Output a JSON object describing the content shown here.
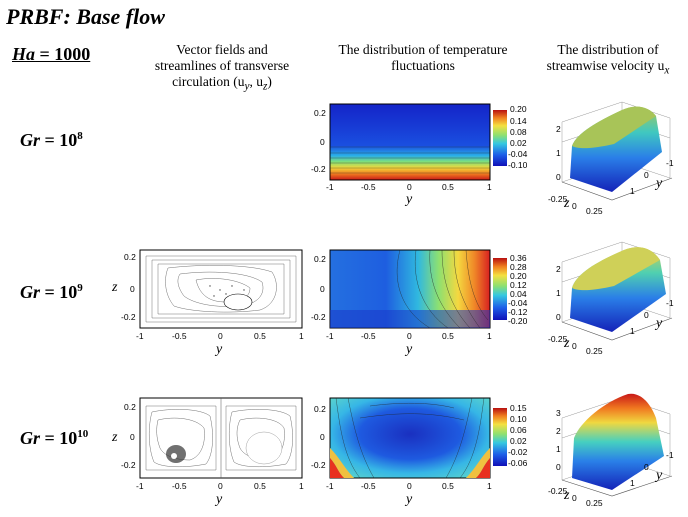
{
  "title": "PRBF: Base flow",
  "ha": {
    "label": "Ha",
    "eq": " = 1000"
  },
  "columns": {
    "vector": [
      "Vector fields and",
      "streamlines of transverse",
      "circulation (u",
      "y",
      ", u",
      "z",
      ")"
    ],
    "temperature": [
      "The distribution of temperature",
      "fluctuations"
    ],
    "velocity": [
      "The distribution of",
      "streamwise velocity u",
      "x"
    ]
  },
  "rows": [
    {
      "gr_label": "Gr",
      "gr_eq": " = 10",
      "gr_exp": "8"
    },
    {
      "gr_label": "Gr",
      "gr_eq": " = 10",
      "gr_exp": "9"
    },
    {
      "gr_label": "Gr",
      "gr_eq": " = 10",
      "gr_exp": "10"
    }
  ],
  "axes": {
    "y_label": "y",
    "z_label": "z",
    "x_ticks": [
      "-1",
      "-0.5",
      "0",
      "0.5",
      "1"
    ],
    "z_ticks_row1": [
      "0.2",
      "0",
      "-0.2"
    ],
    "z_ticks_row2": [
      "0.2",
      "0",
      "-0.2"
    ],
    "z_ticks_row3": [
      "0.2",
      "0",
      "-0.2"
    ]
  },
  "colorbars": [
    {
      "ticks": [
        "0.20",
        "0.14",
        "0.08",
        "0.02",
        "-0.04",
        "-0.10"
      ]
    },
    {
      "ticks": [
        "0.36",
        "0.28",
        "0.20",
        "0.12",
        "0.04",
        "-0.04",
        "-0.12",
        "-0.20"
      ]
    },
    {
      "ticks": [
        "0.15",
        "0.10",
        "0.06",
        "0.02",
        "-0.02",
        "-0.06"
      ]
    }
  ],
  "surface_plots": [
    {
      "zticks": [
        "2",
        "1",
        "0"
      ],
      "label_y": "y",
      "label_z": "z",
      "ticks_z": [
        "-0.25",
        "0",
        "0.25"
      ],
      "ticks_y": [
        "-1",
        "0",
        "1"
      ]
    },
    {
      "zticks": [
        "2",
        "1",
        "0"
      ],
      "label_y": "y",
      "label_z": "z",
      "ticks_z": [
        "-0.25",
        "0",
        "0.25"
      ],
      "ticks_y": [
        "-1",
        "0",
        "1"
      ]
    },
    {
      "zticks": [
        "3",
        "2",
        "1",
        "0"
      ],
      "label_y": "y",
      "label_z": "z",
      "ticks_z": [
        "-0.25",
        "0",
        "0.25"
      ],
      "ticks_y": [
        "-1",
        "0",
        "1"
      ]
    }
  ]
}
